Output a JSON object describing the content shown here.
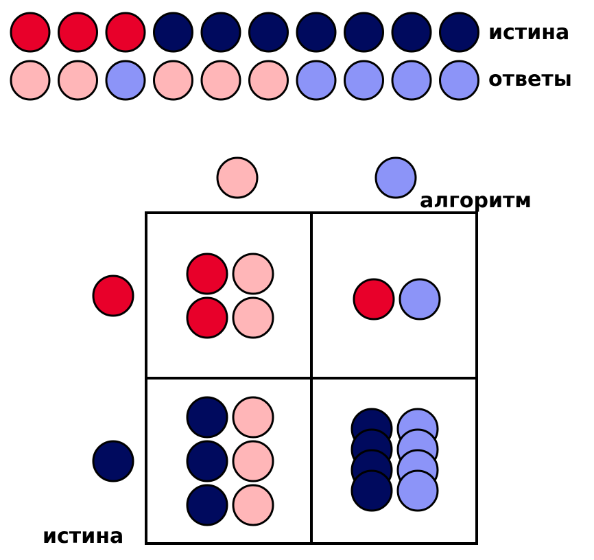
{
  "colors": {
    "true_positive": "#E8002A",
    "true_negative": "#000A5E",
    "answer_positive": "#FFB6B8",
    "answer_negative": "#8C94F8",
    "stroke": "#000000"
  },
  "labels": {
    "truth_row": "истина",
    "answers_row": "ответы",
    "algorithm_axis": "алгоритм",
    "truth_axis": "истина"
  },
  "truth_sequence": [
    "positive",
    "positive",
    "positive",
    "negative",
    "negative",
    "negative",
    "negative",
    "negative",
    "negative",
    "negative"
  ],
  "answer_sequence": [
    "positive",
    "positive",
    "negative",
    "positive",
    "positive",
    "positive",
    "negative",
    "negative",
    "negative",
    "negative"
  ],
  "matrix": {
    "columns": [
      "positive",
      "negative"
    ],
    "rows": [
      "positive",
      "negative"
    ],
    "cells": [
      {
        "truth": "positive",
        "answer": "positive",
        "count": 2
      },
      {
        "truth": "positive",
        "answer": "negative",
        "count": 1
      },
      {
        "truth": "negative",
        "answer": "positive",
        "count": 3
      },
      {
        "truth": "negative",
        "answer": "negative",
        "count": 4
      }
    ]
  }
}
